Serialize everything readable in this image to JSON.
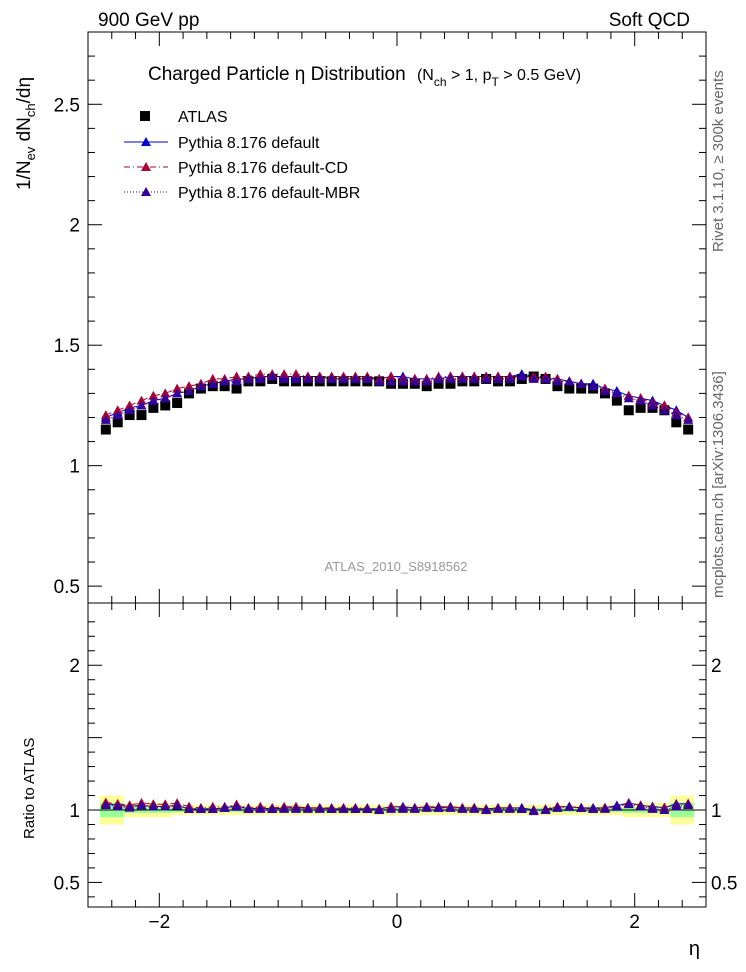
{
  "header": {
    "left": "900 GeV pp",
    "right": "Soft QCD"
  },
  "side_labels": {
    "rivet": "Rivet 3.1.10, ≥ 300k events",
    "mcplots": "mcplots.cern.ch [arXiv:1306.3436]"
  },
  "chart_data": {
    "type": "scatter",
    "title": {
      "main": "Charged Particle  η Distribution",
      "cuts_open": "(N",
      "cuts_sub1": "ch",
      "cuts_mid": " > 1, p",
      "cuts_sub2": "T",
      "cuts_close": " > 0.5 GeV)"
    },
    "watermark": "ATLAS_2010_S8918562",
    "xlabel": "η",
    "ylabel": {
      "part1": "1/N",
      "sub1": "ev",
      "part2": " dN",
      "sub2": "ch",
      "part3": "/dη"
    },
    "ratio_ylabel": "Ratio to ATLAS",
    "xlim": [
      -2.6,
      2.6
    ],
    "ylim_main": [
      0.43,
      2.8
    ],
    "ylim_ratio": [
      0.33,
      2.43
    ],
    "x_ticks": [
      -2,
      0,
      2
    ],
    "x_tick_labels": [
      "−2",
      "0",
      "2"
    ],
    "y_ticks_main": [
      0.5,
      1,
      1.5,
      2,
      2.5
    ],
    "y_tick_labels_main": [
      "0.5",
      "1",
      "1.5",
      "2",
      "2.5"
    ],
    "y_ticks_ratio": [
      0.5,
      1,
      2
    ],
    "y_tick_labels_ratio": [
      "0.5",
      "1",
      "2"
    ],
    "x": [
      -2.45,
      -2.35,
      -2.25,
      -2.15,
      -2.05,
      -1.95,
      -1.85,
      -1.75,
      -1.65,
      -1.55,
      -1.45,
      -1.35,
      -1.25,
      -1.15,
      -1.05,
      -0.95,
      -0.85,
      -0.75,
      -0.65,
      -0.55,
      -0.45,
      -0.35,
      -0.25,
      -0.15,
      -0.05,
      0.05,
      0.15,
      0.25,
      0.35,
      0.45,
      0.55,
      0.65,
      0.75,
      0.85,
      0.95,
      1.05,
      1.15,
      1.25,
      1.35,
      1.45,
      1.55,
      1.65,
      1.75,
      1.85,
      1.95,
      2.05,
      2.15,
      2.25,
      2.35,
      2.45
    ],
    "series": [
      {
        "name": "ATLAS",
        "color": "#000000",
        "marker": "square",
        "values": [
          1.15,
          1.18,
          1.21,
          1.21,
          1.24,
          1.25,
          1.26,
          1.3,
          1.32,
          1.33,
          1.33,
          1.32,
          1.35,
          1.35,
          1.36,
          1.35,
          1.35,
          1.35,
          1.35,
          1.35,
          1.35,
          1.35,
          1.35,
          1.35,
          1.34,
          1.34,
          1.34,
          1.33,
          1.34,
          1.34,
          1.35,
          1.35,
          1.36,
          1.35,
          1.35,
          1.36,
          1.37,
          1.36,
          1.33,
          1.32,
          1.32,
          1.32,
          1.3,
          1.27,
          1.23,
          1.24,
          1.24,
          1.23,
          1.18,
          1.15
        ],
        "err_stat": [
          0.01,
          0.01,
          0.01,
          0.01,
          0.01,
          0.01,
          0.01,
          0.01,
          0.01,
          0.01,
          0.01,
          0.01,
          0.01,
          0.01,
          0.01,
          0.01,
          0.01,
          0.01,
          0.01,
          0.01,
          0.01,
          0.01,
          0.01,
          0.01,
          0.01,
          0.01,
          0.01,
          0.01,
          0.01,
          0.01,
          0.01,
          0.01,
          0.01,
          0.01,
          0.01,
          0.01,
          0.01,
          0.01,
          0.01,
          0.01,
          0.01,
          0.01,
          0.01,
          0.01,
          0.01,
          0.01,
          0.01,
          0.01,
          0.01,
          0.01
        ],
        "ratio_band_stat": [
          0.05,
          0.05,
          0.02,
          0.02,
          0.02,
          0.02,
          0.015,
          0.015,
          0.015,
          0.015,
          0.015,
          0.015,
          0.015,
          0.015,
          0.015,
          0.015,
          0.015,
          0.015,
          0.015,
          0.015,
          0.015,
          0.015,
          0.015,
          0.015,
          0.015,
          0.015,
          0.015,
          0.015,
          0.015,
          0.015,
          0.015,
          0.015,
          0.015,
          0.015,
          0.015,
          0.015,
          0.015,
          0.015,
          0.015,
          0.015,
          0.015,
          0.015,
          0.015,
          0.015,
          0.02,
          0.02,
          0.02,
          0.02,
          0.05,
          0.05
        ],
        "ratio_band_total": [
          0.1,
          0.1,
          0.05,
          0.05,
          0.05,
          0.05,
          0.035,
          0.035,
          0.035,
          0.035,
          0.035,
          0.035,
          0.035,
          0.035,
          0.035,
          0.035,
          0.035,
          0.035,
          0.035,
          0.035,
          0.035,
          0.035,
          0.035,
          0.035,
          0.035,
          0.035,
          0.035,
          0.035,
          0.035,
          0.035,
          0.035,
          0.035,
          0.035,
          0.035,
          0.035,
          0.035,
          0.035,
          0.035,
          0.035,
          0.035,
          0.035,
          0.035,
          0.035,
          0.035,
          0.05,
          0.05,
          0.05,
          0.05,
          0.1,
          0.1
        ]
      },
      {
        "name": "Pythia 8.176 default",
        "color": "#0000cc",
        "marker": "triangle",
        "line": "solid",
        "values": [
          1.2,
          1.22,
          1.24,
          1.25,
          1.27,
          1.28,
          1.3,
          1.31,
          1.33,
          1.34,
          1.35,
          1.36,
          1.36,
          1.37,
          1.37,
          1.37,
          1.37,
          1.37,
          1.37,
          1.36,
          1.36,
          1.36,
          1.36,
          1.36,
          1.37,
          1.37,
          1.36,
          1.36,
          1.36,
          1.37,
          1.37,
          1.37,
          1.37,
          1.37,
          1.37,
          1.38,
          1.37,
          1.36,
          1.36,
          1.35,
          1.34,
          1.34,
          1.32,
          1.31,
          1.29,
          1.28,
          1.27,
          1.25,
          1.23,
          1.2
        ]
      },
      {
        "name": "Pythia 8.176 default-CD",
        "color": "#aa0033",
        "marker": "triangle",
        "line": "dashdot",
        "values": [
          1.21,
          1.23,
          1.25,
          1.27,
          1.29,
          1.3,
          1.32,
          1.33,
          1.34,
          1.36,
          1.36,
          1.37,
          1.37,
          1.38,
          1.38,
          1.38,
          1.38,
          1.37,
          1.37,
          1.37,
          1.37,
          1.37,
          1.37,
          1.36,
          1.37,
          1.36,
          1.36,
          1.36,
          1.37,
          1.37,
          1.37,
          1.37,
          1.37,
          1.37,
          1.37,
          1.37,
          1.37,
          1.37,
          1.36,
          1.35,
          1.34,
          1.33,
          1.32,
          1.3,
          1.29,
          1.28,
          1.26,
          1.25,
          1.22,
          1.2
        ]
      },
      {
        "name": "Pythia 8.176 default-MBR",
        "color": "#330099",
        "marker": "triangle",
        "line": "dotted",
        "values": [
          1.19,
          1.21,
          1.23,
          1.25,
          1.27,
          1.28,
          1.3,
          1.31,
          1.33,
          1.34,
          1.35,
          1.35,
          1.36,
          1.36,
          1.37,
          1.36,
          1.36,
          1.36,
          1.36,
          1.36,
          1.36,
          1.36,
          1.36,
          1.35,
          1.35,
          1.35,
          1.35,
          1.35,
          1.36,
          1.36,
          1.36,
          1.36,
          1.36,
          1.36,
          1.36,
          1.37,
          1.36,
          1.36,
          1.35,
          1.35,
          1.34,
          1.33,
          1.31,
          1.3,
          1.28,
          1.27,
          1.25,
          1.23,
          1.21,
          1.19
        ]
      }
    ],
    "legend": [
      "ATLAS",
      "Pythia 8.176 default",
      "Pythia 8.176 default-CD",
      "Pythia 8.176 default-MBR"
    ],
    "band_colors": {
      "stat": "#99ff99",
      "total": "#ffff99"
    }
  }
}
